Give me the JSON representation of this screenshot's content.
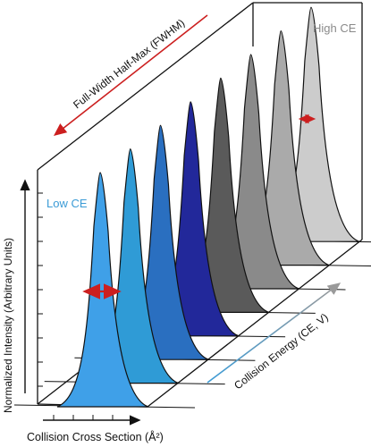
{
  "chart_data": {
    "type": "area",
    "subtype": "stacked-3d-peaks",
    "title": "",
    "xlabel": "Collision Cross Section (Å²)",
    "ylabel": "Normalized Intensity (Arbitrary Units)",
    "zlabel": "Collision Energy (CE, V)",
    "fwhm_label": "Full-Width Half-Max (FWHM)",
    "low_label": "Low CE",
    "high_label": "High CE",
    "grid": false,
    "series": [
      {
        "color": "#3fa0e8"
      },
      {
        "color": "#2f9bd6"
      },
      {
        "color": "#2a6fc0"
      },
      {
        "color": "#22289a"
      },
      {
        "color": "#5a5a5a"
      },
      {
        "color": "#8a8a8a"
      },
      {
        "color": "#aaaaaa"
      },
      {
        "color": "#cccccc"
      }
    ],
    "accent_colors": {
      "fwhm_arrow": "#cc1f1f",
      "ce_arrow": "#3b9bd6",
      "high_text": "#8a8a8a",
      "low_text": "#3b9bd6"
    }
  }
}
